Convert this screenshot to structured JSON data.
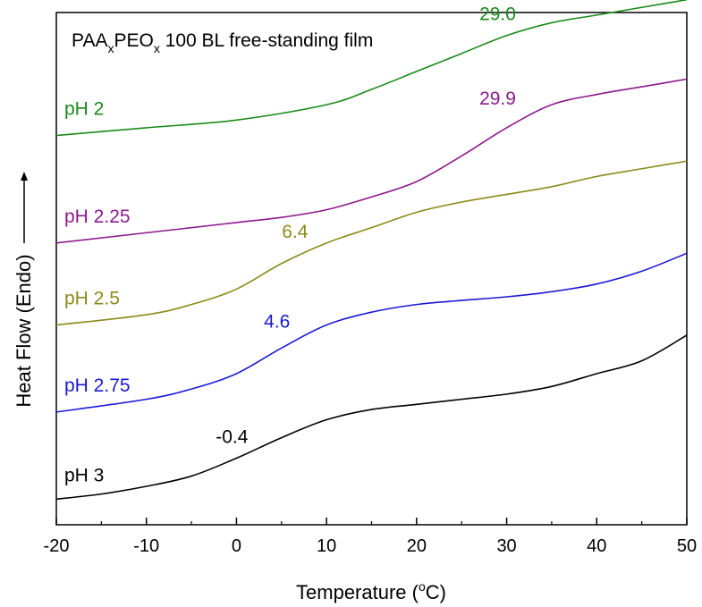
{
  "chart_data": {
    "type": "line",
    "title_parts": {
      "a": "PAA",
      "a_sub": "x",
      "b": "PEO",
      "b_sub": "x",
      "rest": " 100 BL free-standing film"
    },
    "xlabel_parts": {
      "pre": "Temperature (",
      "sup": "o",
      "post": "C)"
    },
    "ylabel": "Heat Flow (Endo)",
    "xlim": [
      -20,
      50
    ],
    "ylim": [
      0,
      100
    ],
    "x_ticks": [
      "-20",
      "-10",
      "0",
      "10",
      "20",
      "30",
      "40",
      "50"
    ],
    "y_ticks_shown": false,
    "grid": false,
    "series": [
      {
        "name": "pH 2",
        "color": "#1a8a1a",
        "tg_label": "29.0",
        "x": [
          -20,
          -10,
          0,
          10,
          15,
          20,
          25,
          30,
          35,
          40,
          45,
          50
        ],
        "y": [
          76,
          77.5,
          79,
          82,
          85,
          88.5,
          92,
          95.5,
          98,
          99.5,
          101,
          102.5
        ]
      },
      {
        "name": "pH 2.25",
        "color": "#8b1a8b",
        "tg_label": "29.9",
        "x": [
          -20,
          -10,
          0,
          5,
          10,
          15,
          20,
          25,
          30,
          35,
          40,
          45,
          50
        ],
        "y": [
          55,
          57,
          59,
          60,
          61.5,
          64,
          67,
          72,
          77.5,
          82,
          84,
          85.5,
          87
        ]
      },
      {
        "name": "pH 2.25_tg",
        "color": "#000000",
        "hidden": true,
        "x": [],
        "y": []
      },
      {
        "name": "pH 2.5",
        "color": "#8b8b1a",
        "tg_label": "6.4",
        "x": [
          -20,
          -10,
          -5,
          0,
          5,
          10,
          15,
          20,
          25,
          30,
          35,
          40,
          45,
          50
        ],
        "y": [
          39,
          41,
          43,
          46,
          51,
          55,
          58,
          61,
          63,
          64.5,
          66,
          68,
          69.5,
          71
        ]
      },
      {
        "name": "pH 2.75",
        "color": "#1a1ad6",
        "tg_label": "4.6",
        "x": [
          -20,
          -10,
          -5,
          0,
          5,
          10,
          15,
          20,
          25,
          30,
          35,
          40,
          45,
          50
        ],
        "y": [
          22,
          24.5,
          26.5,
          29.5,
          34.5,
          39,
          41.5,
          43,
          43.8,
          44.5,
          45.5,
          47,
          49.5,
          53
        ]
      },
      {
        "name": "pH 3",
        "color": "#000000",
        "tg_label": "-0.4",
        "x": [
          -20,
          -15,
          -10,
          -5,
          0,
          5,
          10,
          15,
          20,
          25,
          30,
          35,
          40,
          45,
          50
        ],
        "y": [
          5,
          6,
          7.5,
          9.5,
          13,
          17,
          20.5,
          22.5,
          23.5,
          24.5,
          25.5,
          27,
          29.5,
          32,
          37
        ]
      }
    ],
    "curve_labels": [
      {
        "text": "pH 2",
        "color": "#1a8a1a",
        "x": -20,
        "y": 80
      },
      {
        "text": "pH 2.25",
        "color": "#8b1a8b",
        "x": -20,
        "y": 59
      },
      {
        "text": "pH 2.5",
        "color": "#8b8b1a",
        "x": -20,
        "y": 43
      },
      {
        "text": "pH 2.75",
        "color": "#1a1ad6",
        "x": -20,
        "y": 26
      },
      {
        "text": "pH 3",
        "color": "#000000",
        "x": -20,
        "y": 8.5
      }
    ],
    "tg_labels": [
      {
        "text": "29.0",
        "color": "#1a8a1a",
        "x": 29,
        "y": 98.5
      },
      {
        "text": "29.9",
        "color": "#8b1a8b",
        "x": 29,
        "y": 82
      },
      {
        "text": "6.4",
        "color": "#8b8b1a",
        "x": 6.5,
        "y": 56
      },
      {
        "text": "4.6",
        "color": "#1a1ad6",
        "x": 4.5,
        "y": 38.5
      },
      {
        "text": "-0.4",
        "color": "#000000",
        "x": -0.5,
        "y": 16
      }
    ]
  }
}
